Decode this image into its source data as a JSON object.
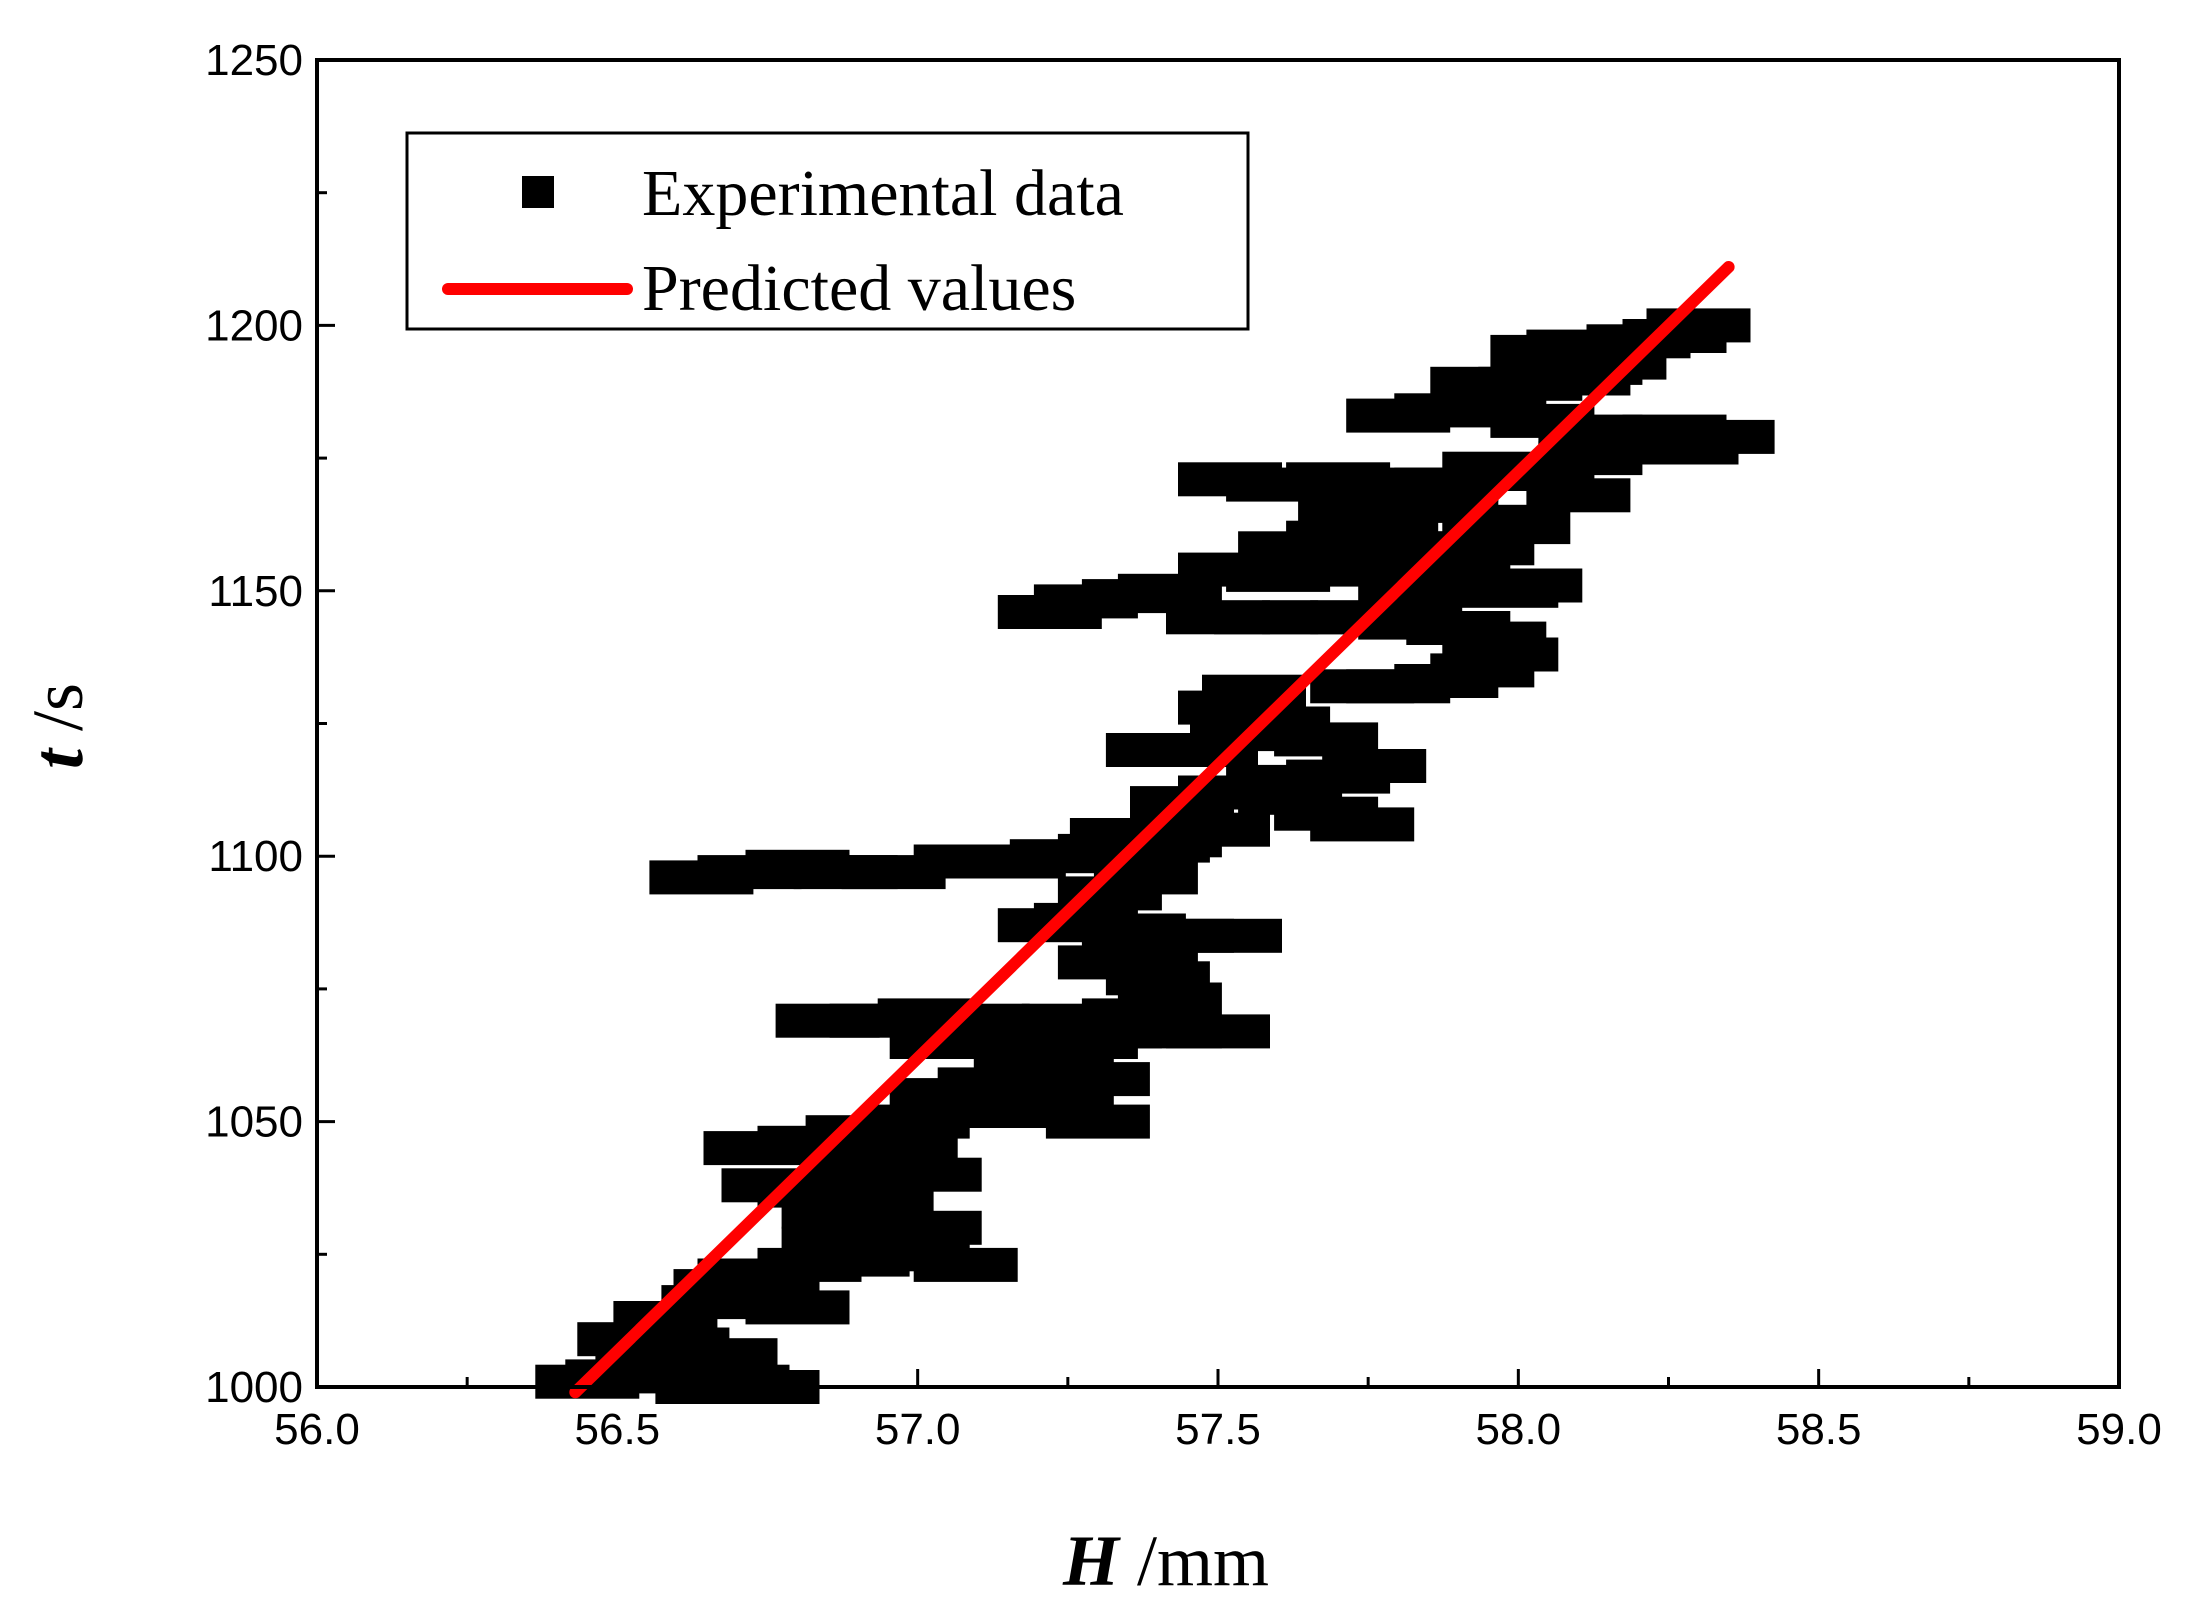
{
  "chart_data": {
    "type": "scatter",
    "title": "",
    "xlabel": {
      "symbol": "H",
      "unit": " /mm"
    },
    "ylabel": {
      "symbol": "t",
      "unit": " /s"
    },
    "xlim": [
      56.0,
      59.0
    ],
    "ylim": [
      1000,
      1250
    ],
    "xticks": [
      "56.0",
      "56.5",
      "57.0",
      "57.5",
      "58.0",
      "58.5",
      "59.0"
    ],
    "yticks": [
      "1000",
      "1050",
      "1100",
      "1150",
      "1200",
      "1250"
    ],
    "grid": false,
    "legend_position": "top-left",
    "colors": {
      "experimental": "#000000",
      "predicted": "#ff0000"
    },
    "series": [
      {
        "name": "Experimental data",
        "kind": "scatter",
        "marker": "square",
        "points": [
          [
            56.45,
            1001
          ],
          [
            56.5,
            1002
          ],
          [
            56.55,
            1004
          ],
          [
            56.6,
            1003
          ],
          [
            56.65,
            1000
          ],
          [
            56.7,
            1001
          ],
          [
            56.75,
            1000
          ],
          [
            56.52,
            1009
          ],
          [
            56.6,
            1008
          ],
          [
            56.68,
            1006
          ],
          [
            56.58,
            1013
          ],
          [
            56.66,
            1016
          ],
          [
            56.75,
            1018
          ],
          [
            56.8,
            1015
          ],
          [
            56.72,
            1021
          ],
          [
            56.68,
            1019
          ],
          [
            56.82,
            1023
          ],
          [
            56.9,
            1024
          ],
          [
            57.0,
            1025
          ],
          [
            57.08,
            1023
          ],
          [
            56.86,
            1027
          ],
          [
            56.94,
            1030
          ],
          [
            57.02,
            1030
          ],
          [
            56.86,
            1033
          ],
          [
            56.94,
            1036
          ],
          [
            57.02,
            1040
          ],
          [
            56.76,
            1038
          ],
          [
            56.82,
            1037
          ],
          [
            56.9,
            1040
          ],
          [
            56.73,
            1045
          ],
          [
            56.82,
            1046
          ],
          [
            56.9,
            1048
          ],
          [
            56.98,
            1045
          ],
          [
            57.0,
            1050
          ],
          [
            57.08,
            1052
          ],
          [
            57.16,
            1053
          ],
          [
            57.24,
            1052
          ],
          [
            57.3,
            1050
          ],
          [
            57.04,
            1055
          ],
          [
            57.12,
            1057
          ],
          [
            57.22,
            1058
          ],
          [
            57.3,
            1058
          ],
          [
            57.18,
            1060
          ],
          [
            57.24,
            1063
          ],
          [
            57.28,
            1065
          ],
          [
            57.32,
            1067
          ],
          [
            56.85,
            1069
          ],
          [
            56.94,
            1069
          ],
          [
            57.02,
            1070
          ],
          [
            57.1,
            1069
          ],
          [
            57.18,
            1068
          ],
          [
            57.26,
            1069
          ],
          [
            57.34,
            1068
          ],
          [
            57.42,
            1067
          ],
          [
            57.5,
            1067
          ],
          [
            57.04,
            1065
          ],
          [
            57.1,
            1066
          ],
          [
            57.36,
            1070
          ],
          [
            57.42,
            1073
          ],
          [
            57.4,
            1077
          ],
          [
            57.32,
            1080
          ],
          [
            57.38,
            1083
          ],
          [
            57.44,
            1085
          ],
          [
            57.52,
            1085
          ],
          [
            57.22,
            1087
          ],
          [
            57.28,
            1088
          ],
          [
            57.36,
            1086
          ],
          [
            57.32,
            1093
          ],
          [
            57.38,
            1096
          ],
          [
            56.64,
            1096
          ],
          [
            56.72,
            1097
          ],
          [
            56.8,
            1098
          ],
          [
            56.88,
            1097
          ],
          [
            56.96,
            1097
          ],
          [
            57.08,
            1099
          ],
          [
            57.16,
            1099
          ],
          [
            57.24,
            1100
          ],
          [
            57.32,
            1101
          ],
          [
            57.4,
            1102
          ],
          [
            57.34,
            1104
          ],
          [
            57.42,
            1103
          ],
          [
            57.5,
            1105
          ],
          [
            57.44,
            1110
          ],
          [
            57.52,
            1112
          ],
          [
            57.6,
            1114
          ],
          [
            57.4,
            1120
          ],
          [
            57.48,
            1120
          ],
          [
            57.54,
            1123
          ],
          [
            57.6,
            1125
          ],
          [
            57.68,
            1122
          ],
          [
            57.68,
            1108
          ],
          [
            57.74,
            1106
          ],
          [
            57.62,
            1111
          ],
          [
            57.7,
            1115
          ],
          [
            57.76,
            1117
          ],
          [
            57.52,
            1128
          ],
          [
            57.56,
            1131
          ],
          [
            57.22,
            1146
          ],
          [
            57.28,
            1148
          ],
          [
            57.36,
            1149
          ],
          [
            57.42,
            1150
          ],
          [
            57.5,
            1145
          ],
          [
            57.58,
            1145
          ],
          [
            57.66,
            1145
          ],
          [
            57.74,
            1145
          ],
          [
            57.82,
            1144
          ],
          [
            57.9,
            1143
          ],
          [
            57.96,
            1141
          ],
          [
            57.98,
            1138
          ],
          [
            57.94,
            1135
          ],
          [
            57.88,
            1133
          ],
          [
            57.8,
            1132
          ],
          [
            57.74,
            1132
          ],
          [
            57.52,
            1154
          ],
          [
            57.6,
            1153
          ],
          [
            57.66,
            1156
          ],
          [
            57.74,
            1154
          ],
          [
            57.62,
            1158
          ],
          [
            57.7,
            1160
          ],
          [
            57.78,
            1160
          ],
          [
            57.86,
            1158
          ],
          [
            57.94,
            1158
          ],
          [
            57.82,
            1150
          ],
          [
            57.9,
            1152
          ],
          [
            57.98,
            1150
          ],
          [
            58.02,
            1151
          ],
          [
            57.72,
            1165
          ],
          [
            57.8,
            1166
          ],
          [
            57.88,
            1167
          ],
          [
            57.96,
            1163
          ],
          [
            58.0,
            1162
          ],
          [
            57.52,
            1171
          ],
          [
            57.6,
            1170
          ],
          [
            57.7,
            1171
          ],
          [
            57.8,
            1170
          ],
          [
            57.88,
            1170
          ],
          [
            57.96,
            1173
          ],
          [
            58.04,
            1172
          ],
          [
            58.1,
            1168
          ],
          [
            58.12,
            1175
          ],
          [
            57.8,
            1183
          ],
          [
            57.88,
            1184
          ],
          [
            57.96,
            1184
          ],
          [
            58.04,
            1182
          ],
          [
            58.12,
            1180
          ],
          [
            58.2,
            1178
          ],
          [
            58.28,
            1177
          ],
          [
            58.34,
            1179
          ],
          [
            58.26,
            1180
          ],
          [
            57.94,
            1189
          ],
          [
            58.02,
            1189
          ],
          [
            58.1,
            1190
          ],
          [
            58.16,
            1193
          ],
          [
            58.12,
            1192
          ],
          [
            58.04,
            1195
          ],
          [
            58.1,
            1196
          ],
          [
            58.2,
            1197
          ],
          [
            58.26,
            1198
          ],
          [
            58.3,
            1200
          ]
        ]
      },
      {
        "name": "Predicted values",
        "kind": "line",
        "x": [
          56.43,
          58.35
        ],
        "y": [
          999,
          1211
        ]
      }
    ]
  }
}
